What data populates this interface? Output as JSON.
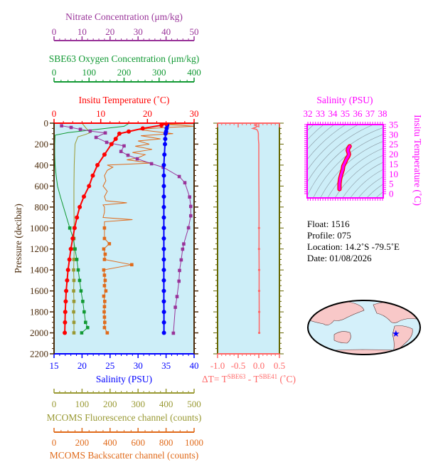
{
  "colors": {
    "temperature": "#ff0000",
    "salinity": "#0000ff",
    "nitrate": "#993399",
    "oxygen": "#119933",
    "fluorescence": "#999933",
    "backscatter": "#e06a1a",
    "delta_t": "#ff6666",
    "ts": "#ff00ff",
    "pressure_axis": "#4a2a0a",
    "dt_frame": "#666600",
    "plot_bg": "#cdeef8",
    "land": "#f8c8c8"
  },
  "info": {
    "float": "Float:  1516",
    "profile": "Profile:  075",
    "location": "Location:  14.2˚S  -79.5˚E",
    "date": "Date:  01/08/2026"
  },
  "chart_data": [
    {
      "type": "line",
      "name_hint": "profile",
      "axes": {
        "pressure": {
          "title": "Pressure (decibar)",
          "range": [
            0,
            2200
          ],
          "inverted": true,
          "ticks": [
            "0",
            "200",
            "400",
            "600",
            "800",
            "1000",
            "1200",
            "1400",
            "1600",
            "1800",
            "2000",
            "2200"
          ]
        },
        "temperature": {
          "title": "Insitu Temperature (˚C)",
          "range": [
            0,
            30
          ],
          "ticks": [
            "0",
            "10",
            "20",
            "30"
          ]
        },
        "salinity": {
          "title": "Salinity (PSU)",
          "range": [
            15,
            40
          ],
          "ticks": [
            "15",
            "20",
            "25",
            "30",
            "35",
            "40"
          ]
        },
        "nitrate": {
          "title": "Nitrate Concentration (μm/kg)",
          "range": [
            0,
            50
          ],
          "ticks": [
            "0",
            "10",
            "20",
            "30",
            "40",
            "50"
          ]
        },
        "oxygen": {
          "title": "SBE63 Oxygen Concentration (μm/kg)",
          "range": [
            0,
            400
          ],
          "ticks": [
            "0",
            "100",
            "200",
            "300",
            "400"
          ]
        },
        "fluorescence": {
          "title": "MCOMS Fluorescence channel (counts)",
          "range": [
            0,
            500
          ],
          "ticks": [
            "0",
            "100",
            "200",
            "300",
            "400",
            "500"
          ]
        },
        "backscatter": {
          "title": "MCOMS Backscatter channel (counts)",
          "range": [
            0,
            1000
          ],
          "ticks": [
            "0",
            "200",
            "400",
            "600",
            "800",
            "1000"
          ]
        }
      },
      "series": {
        "temperature": {
          "pressure": [
            5,
            20,
            50,
            80,
            100,
            150,
            200,
            300,
            400,
            500,
            600,
            700,
            800,
            900,
            1000,
            1100,
            1200,
            1300,
            1400,
            1500,
            1600,
            1700,
            1800,
            1900,
            2000
          ],
          "values": [
            24,
            23,
            19,
            16,
            14,
            13.2,
            12.3,
            10.8,
            9.3,
            8.3,
            7.5,
            6.4,
            5.5,
            4.9,
            4.4,
            4.0,
            3.6,
            3.3,
            3.0,
            2.8,
            2.6,
            2.5,
            2.4,
            2.35,
            2.3
          ]
        },
        "salinity": {
          "pressure": [
            5,
            20,
            50,
            80,
            100,
            150,
            200,
            300,
            400,
            500,
            600,
            700,
            800,
            900,
            1000,
            1100,
            1200,
            1300,
            1400,
            1500,
            1600,
            1700,
            1800,
            1900,
            2000
          ],
          "values": [
            35.2,
            35.2,
            35.1,
            35.0,
            34.9,
            34.85,
            34.8,
            34.7,
            34.6,
            34.6,
            34.6,
            34.6,
            34.6,
            34.6,
            34.6,
            34.6,
            34.6,
            34.6,
            34.6,
            34.6,
            34.6,
            34.6,
            34.62,
            34.62,
            34.62
          ]
        },
        "nitrate": {
          "pressure": [
            25,
            41,
            59,
            75,
            93,
            136,
            183,
            217,
            270,
            306,
            340,
            387,
            421,
            509,
            568,
            704,
            794,
            884,
            998,
            1152,
            1202,
            1304,
            1405,
            1507,
            1654,
            1756,
            2003
          ],
          "values": [
            2.7,
            6.1,
            9.4,
            12.9,
            18.3,
            15,
            18.8,
            25,
            23.9,
            26.4,
            29.7,
            34.8,
            39,
            44.7,
            46.7,
            48.4,
            48.8,
            48.8,
            48,
            46.3,
            45.9,
            45.4,
            44.8,
            44.6,
            43.9,
            43.3,
            42.6
          ]
        },
        "oxygen_profile": {
          "pressure": [
            0,
            30,
            60,
            90,
            115,
            200,
            300,
            400,
            500,
            600,
            700,
            800,
            900,
            1000
          ],
          "values": [
            215,
            200,
            120,
            40,
            3,
            2,
            2,
            3,
            6,
            10,
            18,
            27,
            36,
            45
          ]
        },
        "oxygen_samples": {
          "pressure": [
            1000,
            1100,
            1200,
            1300,
            1400,
            1500,
            1600,
            1700,
            1800,
            1900,
            1950,
            2000
          ],
          "values": [
            45,
            55,
            60,
            65,
            69,
            73,
            77,
            82,
            86,
            90,
            96,
            79
          ]
        },
        "fluorescence_profile": {
          "pressure": [
            0,
            50,
            90,
            110,
            130,
            200,
            400,
            600,
            800,
            1000
          ],
          "values": [
            100,
            115,
            130,
            110,
            85,
            75,
            72,
            71,
            71,
            72
          ]
        },
        "fluorescence_samples": {
          "pressure": [
            1000,
            1100,
            1200,
            1300,
            1400,
            1500,
            1600,
            1700,
            1800,
            1900,
            2000
          ],
          "values": [
            72,
            71,
            72,
            71,
            70,
            71,
            70,
            71,
            70,
            71,
            71
          ]
        },
        "backscatter_profile": {
          "pressure": [
            0,
            5,
            10,
            20,
            30,
            40,
            50,
            60,
            80,
            100,
            120,
            150,
            170,
            200,
            220,
            250,
            280,
            300,
            330,
            350,
            380,
            400,
            420,
            450,
            500,
            550,
            600,
            650,
            700,
            740,
            760,
            780,
            800,
            850,
            900,
            920,
            940,
            1000
          ],
          "values": [
            650,
            1000,
            760,
            900,
            1000,
            820,
            700,
            600,
            720,
            850,
            620,
            760,
            600,
            680,
            580,
            700,
            560,
            650,
            600,
            520,
            700,
            380,
            420,
            380,
            360,
            370,
            350,
            380,
            360,
            370,
            520,
            350,
            360,
            360,
            350,
            560,
            360,
            360
          ]
        },
        "backscatter_samples": {
          "pressure": [
            1000,
            1100,
            1150,
            1200,
            1250,
            1300,
            1350,
            1400,
            1450,
            1500,
            1550,
            1600,
            1650,
            1700,
            1750,
            1800,
            1850,
            1900,
            1950,
            2000
          ],
          "values": [
            360,
            360,
            395,
            355,
            365,
            360,
            555,
            355,
            360,
            365,
            360,
            370,
            355,
            362,
            360,
            358,
            360,
            362,
            360,
            380
          ]
        }
      }
    },
    {
      "type": "line",
      "name_hint": "delta-t",
      "axes": {
        "x": {
          "title_main": "ΔT= T",
          "sup1": "SBE63",
          "mid": " - T",
          "sup2": "SBE41",
          "unit": " (˚C)",
          "range": [
            -1.0,
            0.5
          ],
          "ticks": [
            "-1.0",
            "-0.5",
            "0.0",
            "0.5"
          ]
        },
        "pressure": {
          "range": [
            0,
            2200
          ]
        }
      },
      "pressure": [
        0,
        10,
        20,
        30,
        40,
        50,
        60,
        80,
        100,
        150,
        200,
        300,
        500,
        800,
        1000,
        1200,
        1400,
        1600,
        1800,
        2000
      ],
      "values": [
        -0.02,
        -0.05,
        -0.1,
        -0.03,
        -0.08,
        -0.15,
        -0.05,
        -0.02,
        -0.01,
        -0.01,
        0,
        0,
        0,
        0.005,
        0.005,
        0.005,
        0.008,
        0.008,
        0.01,
        0.01
      ]
    },
    {
      "type": "line",
      "name_hint": "ts-diagram",
      "axes": {
        "x": {
          "title": "Salinity (PSU)",
          "range": [
            32,
            38
          ],
          "ticks": [
            "32",
            "33",
            "34",
            "35",
            "36",
            "37",
            "38"
          ]
        },
        "y": {
          "title": "Insitu Temperature (˚C)",
          "range": [
            0,
            35
          ],
          "ticks": [
            "0",
            "5",
            "10",
            "15",
            "20",
            "25",
            "30",
            "35"
          ]
        }
      },
      "salinity": [
        34.55,
        34.55,
        34.6,
        34.7,
        34.8,
        34.85,
        35.0,
        35.1,
        35.25,
        35.3,
        35.2,
        35.25,
        35.35
      ],
      "temperature": [
        2.3,
        5,
        7.5,
        10,
        12,
        14,
        16,
        17.5,
        19,
        20,
        22,
        23,
        24
      ]
    }
  ]
}
